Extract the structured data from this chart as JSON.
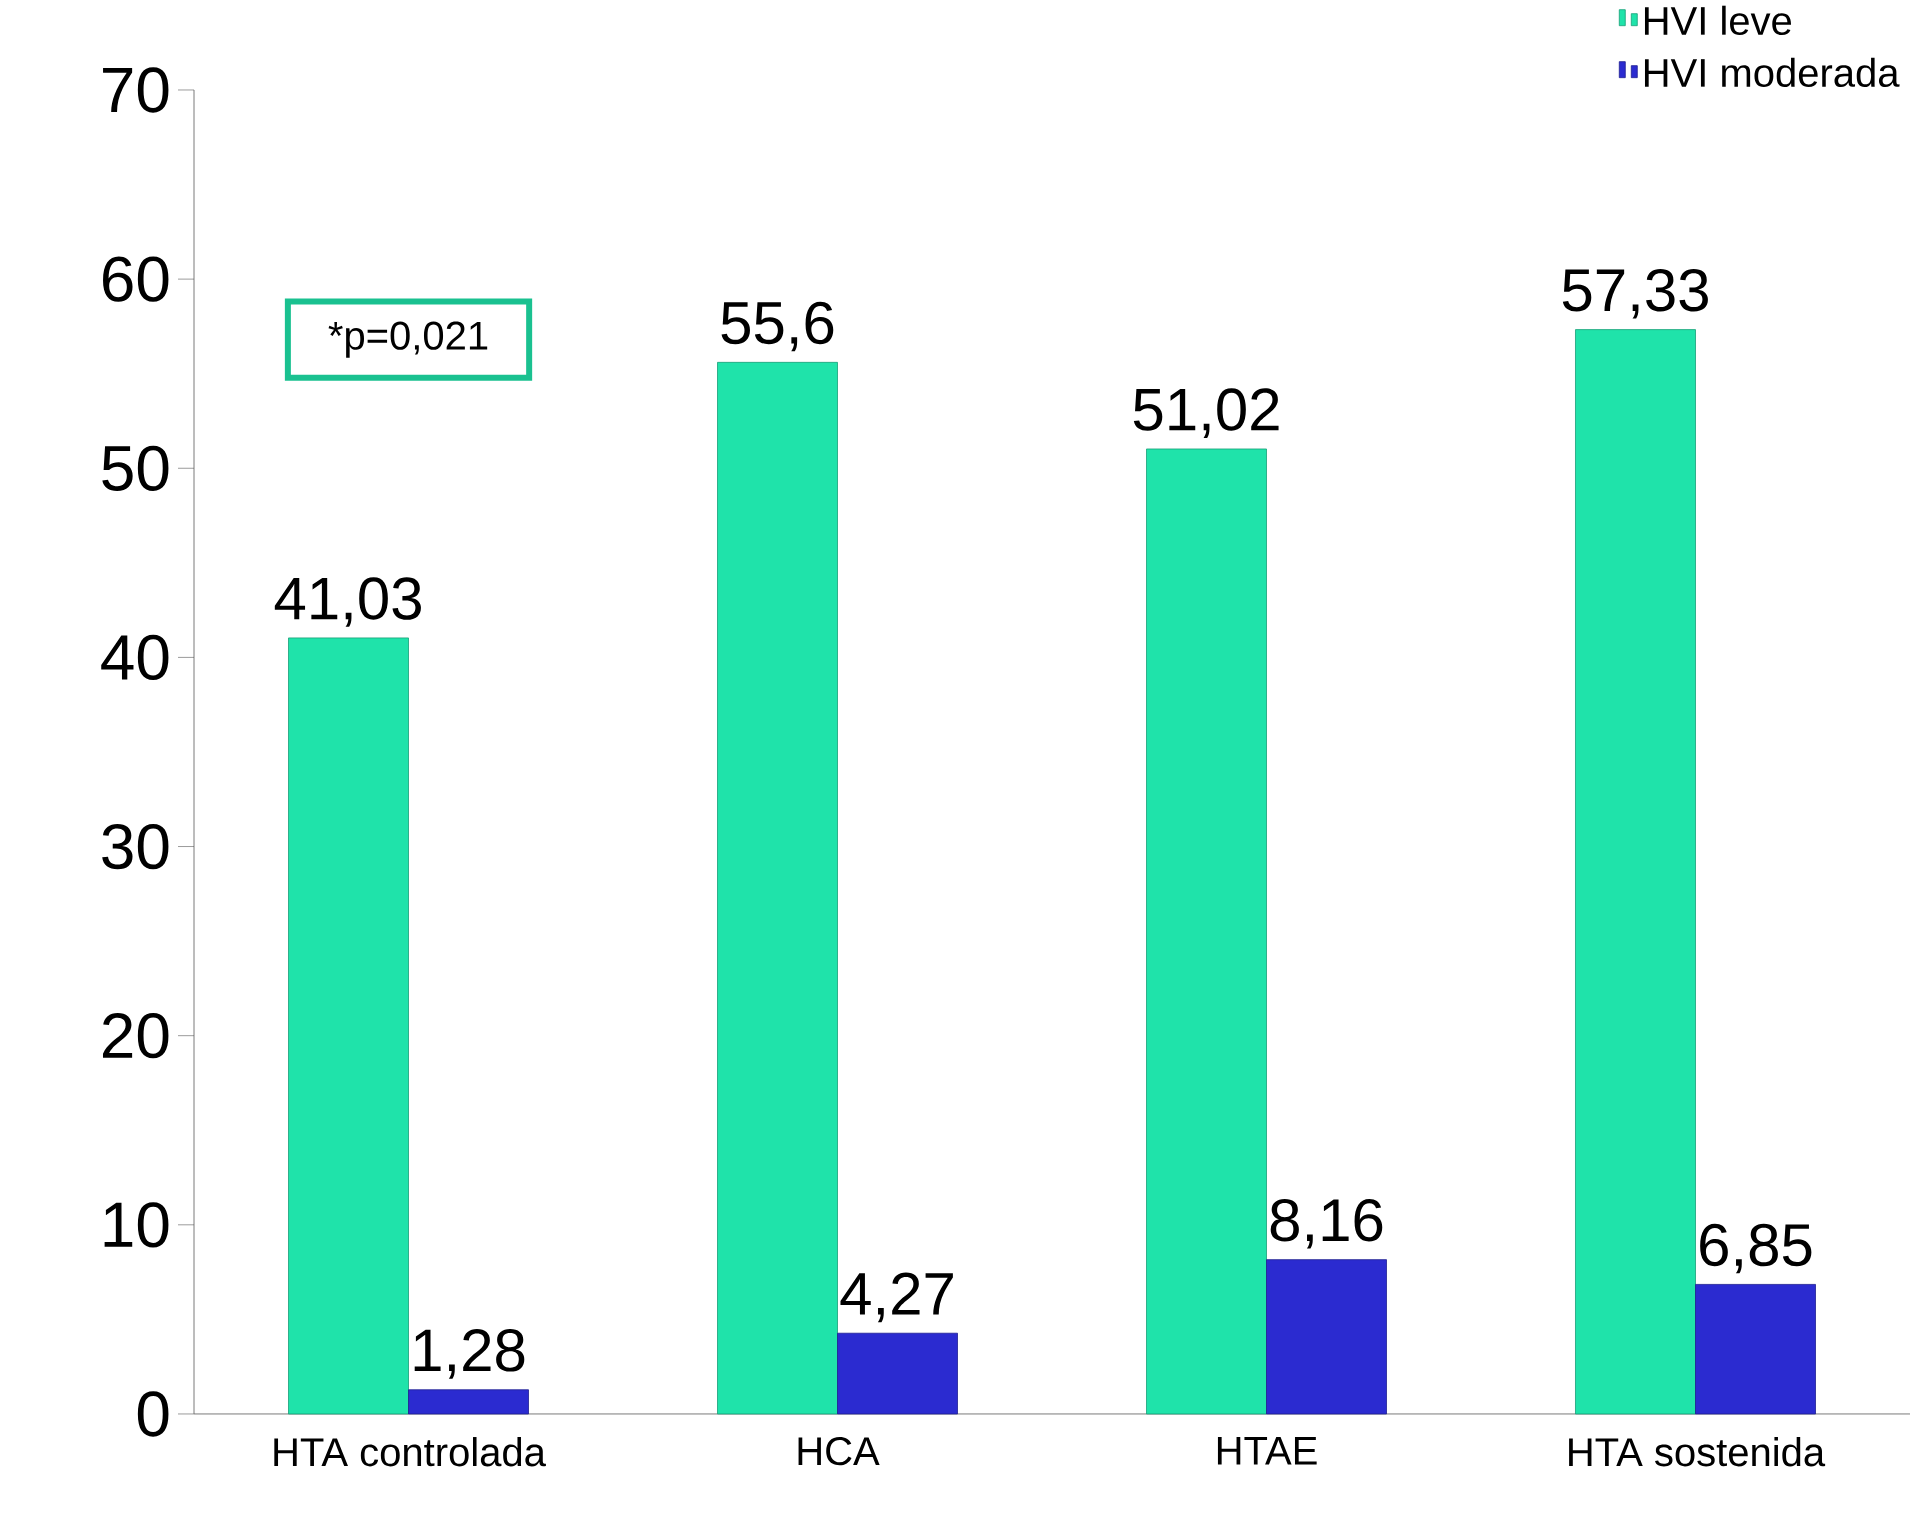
{
  "chart_data": {
    "type": "bar",
    "categories": [
      "HTA controlada",
      "HCA",
      "HTAE",
      "HTA sostenida"
    ],
    "series": [
      {
        "name": "HVI leve",
        "color": "#1fe3aa",
        "values": [
          41.03,
          55.6,
          51.02,
          57.33
        ],
        "value_labels": [
          "41,03",
          "55,6",
          "51,02",
          "57,33"
        ]
      },
      {
        "name": "HVI moderada",
        "color": "#2b2bd0",
        "values": [
          1.28,
          4.27,
          8.16,
          6.85
        ],
        "value_labels": [
          "1,28",
          "4,27",
          "8,16",
          "6,85"
        ]
      }
    ],
    "ylim": [
      0,
      70
    ],
    "yticks": [
      0,
      10,
      20,
      30,
      40,
      50,
      60,
      70
    ],
    "annotations": [
      "*p=0,021"
    ],
    "legend": "top right",
    "grid": false
  }
}
